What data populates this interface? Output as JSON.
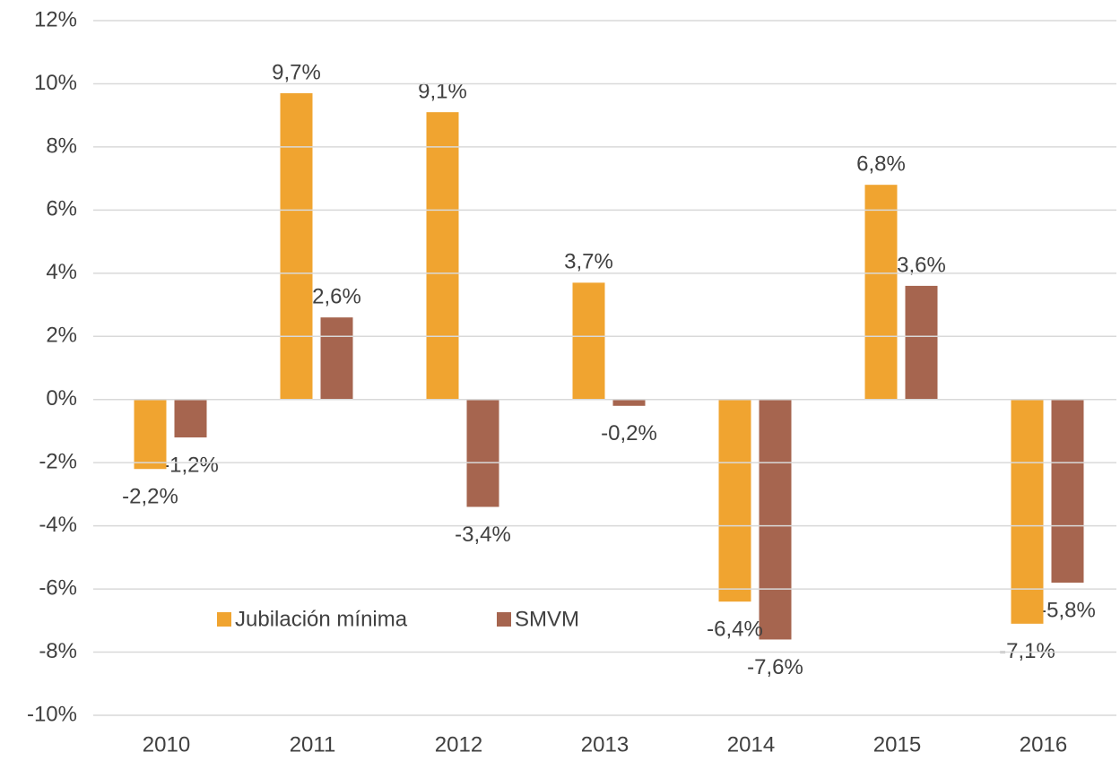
{
  "chart_data": {
    "type": "bar",
    "categories": [
      "2010",
      "2011",
      "2012",
      "2013",
      "2014",
      "2015",
      "2016"
    ],
    "series": [
      {
        "name": "Jubilación mínima",
        "color": "#f0a430",
        "values": [
          -2.2,
          9.7,
          9.1,
          3.7,
          -6.4,
          6.8,
          -7.1
        ],
        "value_labels": [
          "-2,2%",
          "9,7%",
          "9,1%",
          "3,7%",
          "-6,4%",
          "6,8%",
          "-7,1%"
        ]
      },
      {
        "name": "SMVM",
        "color": "#a6654f",
        "values": [
          -1.2,
          2.6,
          -3.4,
          -0.2,
          -7.6,
          3.6,
          -5.8
        ],
        "value_labels": [
          "-1,2%",
          "2,6%",
          "-3,4%",
          "-0,2%",
          "-7,6%",
          "3,6%",
          "-5,8%"
        ]
      }
    ],
    "ylim": [
      -10,
      12
    ],
    "yticks": [
      {
        "value": -10,
        "label": "-10%"
      },
      {
        "value": -8,
        "label": "-8%"
      },
      {
        "value": -6,
        "label": "-6%"
      },
      {
        "value": -4,
        "label": "-4%"
      },
      {
        "value": -2,
        "label": "-2%"
      },
      {
        "value": 0,
        "label": "0%"
      },
      {
        "value": 2,
        "label": "2%"
      },
      {
        "value": 4,
        "label": "4%"
      },
      {
        "value": 6,
        "label": "6%"
      },
      {
        "value": 8,
        "label": "8%"
      },
      {
        "value": 10,
        "label": "10%"
      },
      {
        "value": 12,
        "label": "12%"
      }
    ],
    "grid": true
  }
}
